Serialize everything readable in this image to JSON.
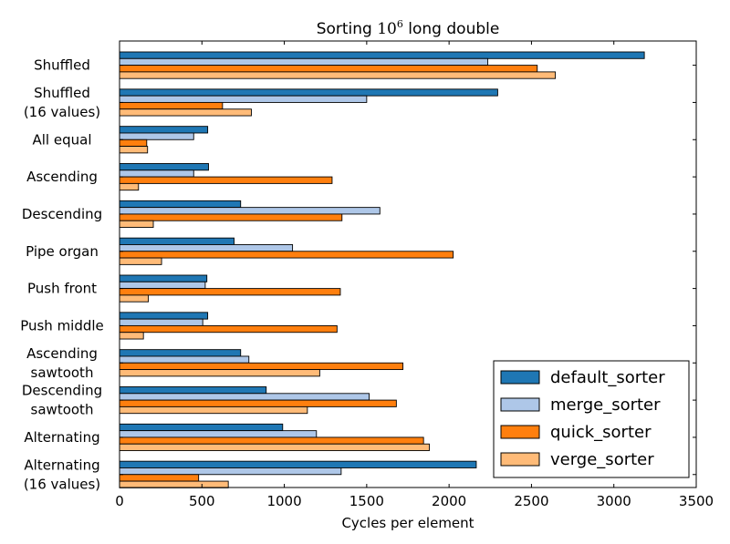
{
  "chart_data": {
    "type": "bar",
    "orientation": "horizontal",
    "title_prefix": "Sorting ",
    "title_base": "10",
    "title_exponent": "6",
    "title_suffix": " long double",
    "xlabel": "Cycles per element",
    "ylabel": "",
    "xlim": [
      0,
      3500
    ],
    "xticks": [
      0,
      500,
      1000,
      1500,
      2000,
      2500,
      3000,
      3500
    ],
    "grid": false,
    "legend_position": "lower-right",
    "categories": [
      [
        "Shuffled"
      ],
      [
        "Shuffled",
        "(16 values)"
      ],
      [
        "All equal"
      ],
      [
        "Ascending"
      ],
      [
        "Descending"
      ],
      [
        "Pipe organ"
      ],
      [
        "Push front"
      ],
      [
        "Push middle"
      ],
      [
        "Ascending",
        "sawtooth"
      ],
      [
        "Descending",
        "sawtooth"
      ],
      [
        "Alternating"
      ],
      [
        "Alternating",
        "(16 values)"
      ]
    ],
    "series": [
      {
        "name": "default_sorter",
        "color": "#1f77b4",
        "values": [
          3185,
          2295,
          535,
          540,
          735,
          695,
          530,
          535,
          735,
          890,
          990,
          2165
        ]
      },
      {
        "name": "merge_sorter",
        "color": "#aec7e8",
        "values": [
          2235,
          1500,
          450,
          450,
          1580,
          1050,
          520,
          505,
          785,
          1515,
          1195,
          1345
        ]
      },
      {
        "name": "quick_sorter",
        "color": "#ff7f0e",
        "values": [
          2535,
          625,
          165,
          1290,
          1350,
          2025,
          1340,
          1320,
          1720,
          1680,
          1845,
          480
        ]
      },
      {
        "name": "verge_sorter",
        "color": "#ffbb78",
        "values": [
          2645,
          800,
          170,
          115,
          205,
          255,
          175,
          145,
          1215,
          1140,
          1880,
          660
        ]
      }
    ]
  }
}
